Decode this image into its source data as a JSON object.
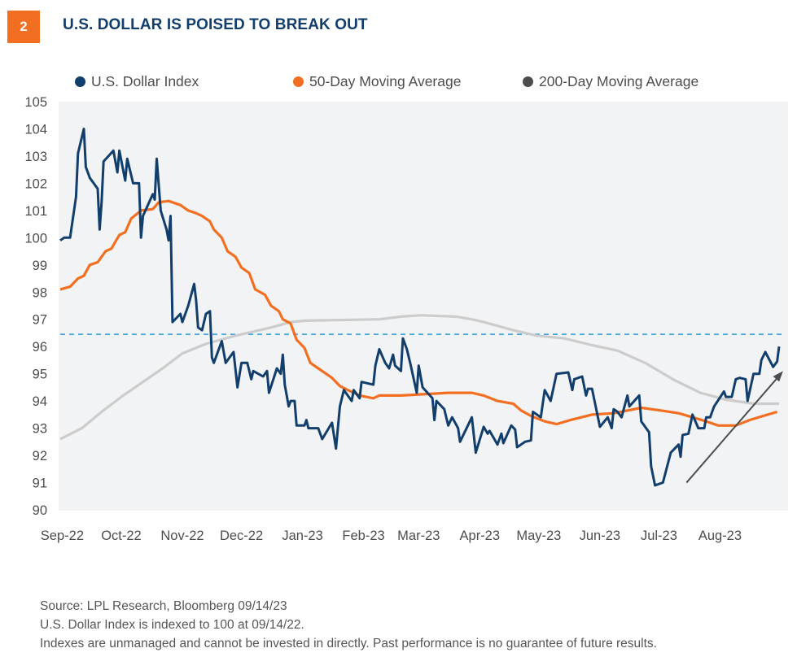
{
  "header": {
    "badge": "2",
    "title": "U.S. DOLLAR IS POISED TO BREAK OUT"
  },
  "footnotes": [
    "Source: LPL Research, Bloomberg  09/14/23",
    "U.S. Dollar Index is indexed to 100 at 09/14/22.",
    "Indexes are unmanaged and cannot be invested in directly. Past performance is no guarantee of future results."
  ],
  "chart_data": {
    "type": "line",
    "title": "U.S. DOLLAR IS POISED TO BREAK OUT",
    "xlabel": "",
    "ylabel": "",
    "ylim": [
      90,
      105
    ],
    "yticks": [
      90,
      91,
      92,
      93,
      94,
      95,
      96,
      97,
      98,
      99,
      100,
      101,
      102,
      103,
      104,
      105
    ],
    "xlim": [
      "2022-09-14",
      "2023-09-14"
    ],
    "xticks": [
      "Sep-22",
      "Oct-22",
      "Nov-22",
      "Dec-22",
      "Jan-23",
      "Feb-23",
      "Mar-23",
      "Apr-23",
      "May-23",
      "Jun-23",
      "Jul-23",
      "Aug-23"
    ],
    "grid": false,
    "legend": "top",
    "reference_line": {
      "y": 96.45,
      "style": "dashed",
      "color": "#2b9bd8"
    },
    "annotation_arrow": {
      "from": [
        "2023-07-29",
        91.0
      ],
      "to": [
        "2023-09-16",
        95.1
      ],
      "color": "#4d4d4d"
    },
    "series": [
      {
        "name": "U.S. Dollar Index",
        "color": "#123e6b",
        "legend_color": "#123e6b",
        "points": [
          [
            "2022-09-14",
            99.9
          ],
          [
            "2022-09-16",
            100.0
          ],
          [
            "2022-09-19",
            100.0
          ],
          [
            "2022-09-22",
            101.5
          ],
          [
            "2022-09-23",
            103.1
          ],
          [
            "2022-09-26",
            104.0
          ],
          [
            "2022-09-27",
            102.6
          ],
          [
            "2022-09-29",
            102.2
          ],
          [
            "2022-10-03",
            101.8
          ],
          [
            "2022-10-04",
            100.3
          ],
          [
            "2022-10-05",
            101.3
          ],
          [
            "2022-10-06",
            102.8
          ],
          [
            "2022-10-11",
            103.2
          ],
          [
            "2022-10-13",
            102.4
          ],
          [
            "2022-10-14",
            103.2
          ],
          [
            "2022-10-17",
            102.1
          ],
          [
            "2022-10-18",
            102.9
          ],
          [
            "2022-10-21",
            102.0
          ],
          [
            "2022-10-24",
            102.0
          ],
          [
            "2022-10-25",
            100.0
          ],
          [
            "2022-10-26",
            100.8
          ],
          [
            "2022-10-31",
            101.6
          ],
          [
            "2022-11-01",
            101.4
          ],
          [
            "2022-11-02",
            102.9
          ],
          [
            "2022-11-04",
            101.0
          ],
          [
            "2022-11-07",
            100.3
          ],
          [
            "2022-11-08",
            99.9
          ],
          [
            "2022-11-09",
            100.8
          ],
          [
            "2022-11-10",
            96.9
          ],
          [
            "2022-11-14",
            97.2
          ],
          [
            "2022-11-15",
            96.9
          ],
          [
            "2022-11-18",
            97.5
          ],
          [
            "2022-11-21",
            98.3
          ],
          [
            "2022-11-22",
            97.7
          ],
          [
            "2022-11-23",
            96.7
          ],
          [
            "2022-11-25",
            96.6
          ],
          [
            "2022-11-27",
            97.2
          ],
          [
            "2022-11-29",
            97.3
          ],
          [
            "2022-11-30",
            95.6
          ],
          [
            "2022-12-01",
            95.4
          ],
          [
            "2022-12-05",
            96.2
          ],
          [
            "2022-12-07",
            95.4
          ],
          [
            "2022-12-11",
            95.8
          ],
          [
            "2022-12-13",
            94.5
          ],
          [
            "2022-12-15",
            95.4
          ],
          [
            "2022-12-18",
            95.4
          ],
          [
            "2022-12-20",
            94.8
          ],
          [
            "2022-12-21",
            95.1
          ],
          [
            "2022-12-26",
            94.9
          ],
          [
            "2022-12-28",
            95.1
          ],
          [
            "2022-12-29",
            94.3
          ],
          [
            "2023-01-02",
            95.2
          ],
          [
            "2023-01-04",
            95.0
          ],
          [
            "2023-01-05",
            95.7
          ],
          [
            "2023-01-06",
            94.6
          ],
          [
            "2023-01-08",
            93.8
          ],
          [
            "2023-01-09",
            94.0
          ],
          [
            "2023-01-11",
            94.0
          ],
          [
            "2023-01-12",
            93.1
          ],
          [
            "2023-01-16",
            93.1
          ],
          [
            "2023-01-17",
            93.3
          ],
          [
            "2023-01-18",
            93.0
          ],
          [
            "2023-01-23",
            93.0
          ],
          [
            "2023-01-25",
            92.6
          ],
          [
            "2023-01-30",
            93.2
          ],
          [
            "2023-02-01",
            92.25
          ],
          [
            "2023-02-03",
            93.8
          ],
          [
            "2023-02-05",
            94.4
          ],
          [
            "2023-02-09",
            94.0
          ],
          [
            "2023-02-10",
            94.4
          ],
          [
            "2023-02-13",
            94.1
          ],
          [
            "2023-02-14",
            94.7
          ],
          [
            "2023-02-20",
            94.6
          ],
          [
            "2023-02-21",
            95.3
          ],
          [
            "2023-02-23",
            95.9
          ],
          [
            "2023-02-26",
            95.4
          ],
          [
            "2023-02-28",
            95.2
          ],
          [
            "2023-03-02",
            95.7
          ],
          [
            "2023-03-03",
            95.3
          ],
          [
            "2023-03-06",
            95.1
          ],
          [
            "2023-03-07",
            96.3
          ],
          [
            "2023-03-09",
            95.9
          ],
          [
            "2023-03-11",
            95.3
          ],
          [
            "2023-03-14",
            94.3
          ],
          [
            "2023-03-15",
            95.3
          ],
          [
            "2023-03-17",
            94.5
          ],
          [
            "2023-03-22",
            94.1
          ],
          [
            "2023-03-23",
            93.3
          ],
          [
            "2023-03-24",
            94.0
          ],
          [
            "2023-03-28",
            93.7
          ],
          [
            "2023-03-30",
            93.1
          ],
          [
            "2023-04-01",
            93.4
          ],
          [
            "2023-04-04",
            93.0
          ],
          [
            "2023-04-05",
            92.5
          ],
          [
            "2023-04-07",
            92.8
          ],
          [
            "2023-04-11",
            93.4
          ],
          [
            "2023-04-13",
            92.1
          ],
          [
            "2023-04-17",
            93.05
          ],
          [
            "2023-04-19",
            92.8
          ],
          [
            "2023-04-20",
            92.9
          ],
          [
            "2023-04-24",
            92.4
          ],
          [
            "2023-04-26",
            92.8
          ],
          [
            "2023-04-27",
            92.45
          ],
          [
            "2023-05-01",
            93.1
          ],
          [
            "2023-05-03",
            92.95
          ],
          [
            "2023-05-04",
            92.3
          ],
          [
            "2023-05-08",
            92.5
          ],
          [
            "2023-05-11",
            92.55
          ],
          [
            "2023-05-12",
            93.6
          ],
          [
            "2023-05-16",
            93.4
          ],
          [
            "2023-05-18",
            94.4
          ],
          [
            "2023-05-21",
            94.0
          ],
          [
            "2023-05-24",
            95.0
          ],
          [
            "2023-05-30",
            95.05
          ],
          [
            "2023-06-01",
            94.4
          ],
          [
            "2023-06-02",
            94.8
          ],
          [
            "2023-06-06",
            94.9
          ],
          [
            "2023-06-08",
            94.2
          ],
          [
            "2023-06-09",
            94.45
          ],
          [
            "2023-06-11",
            94.45
          ],
          [
            "2023-06-15",
            93.05
          ],
          [
            "2023-06-19",
            93.4
          ],
          [
            "2023-06-21",
            93.0
          ],
          [
            "2023-06-22",
            93.7
          ],
          [
            "2023-06-24",
            93.6
          ],
          [
            "2023-06-26",
            93.4
          ],
          [
            "2023-06-29",
            94.2
          ],
          [
            "2023-06-30",
            93.8
          ],
          [
            "2023-07-05",
            94.2
          ],
          [
            "2023-07-06",
            93.25
          ],
          [
            "2023-07-10",
            92.85
          ],
          [
            "2023-07-11",
            91.6
          ],
          [
            "2023-07-13",
            90.9
          ],
          [
            "2023-07-17",
            91.0
          ],
          [
            "2023-07-21",
            92.1
          ],
          [
            "2023-07-25",
            92.4
          ],
          [
            "2023-07-26",
            91.95
          ],
          [
            "2023-07-27",
            92.75
          ],
          [
            "2023-07-30",
            92.8
          ],
          [
            "2023-08-01",
            93.5
          ],
          [
            "2023-08-04",
            93.0
          ],
          [
            "2023-08-07",
            93.0
          ],
          [
            "2023-08-08",
            93.4
          ],
          [
            "2023-08-10",
            93.4
          ],
          [
            "2023-08-12",
            93.8
          ],
          [
            "2023-08-17",
            94.35
          ],
          [
            "2023-08-18",
            94.15
          ],
          [
            "2023-08-21",
            94.15
          ],
          [
            "2023-08-23",
            94.8
          ],
          [
            "2023-08-25",
            94.85
          ],
          [
            "2023-08-28",
            94.8
          ],
          [
            "2023-08-29",
            94.0
          ],
          [
            "2023-09-01",
            95.0
          ],
          [
            "2023-09-04",
            95.0
          ],
          [
            "2023-09-05",
            95.5
          ],
          [
            "2023-09-07",
            95.8
          ],
          [
            "2023-09-11",
            95.25
          ],
          [
            "2023-09-13",
            95.45
          ],
          [
            "2023-09-14",
            96.0
          ]
        ]
      },
      {
        "name": "50-Day Moving Average",
        "color": "#f26f21",
        "legend_color": "#f26f21",
        "points": [
          [
            "2022-09-14",
            98.1
          ],
          [
            "2022-09-19",
            98.2
          ],
          [
            "2022-09-23",
            98.5
          ],
          [
            "2022-09-26",
            98.6
          ],
          [
            "2022-09-29",
            99.0
          ],
          [
            "2022-10-03",
            99.1
          ],
          [
            "2022-10-07",
            99.5
          ],
          [
            "2022-10-10",
            99.6
          ],
          [
            "2022-10-14",
            100.1
          ],
          [
            "2022-10-17",
            100.2
          ],
          [
            "2022-10-20",
            100.7
          ],
          [
            "2022-10-25",
            101.0
          ],
          [
            "2022-10-31",
            101.05
          ],
          [
            "2022-11-03",
            101.3
          ],
          [
            "2022-11-08",
            101.35
          ],
          [
            "2022-11-14",
            101.2
          ],
          [
            "2022-11-18",
            101.0
          ],
          [
            "2022-11-22",
            100.9
          ],
          [
            "2022-11-25",
            100.8
          ],
          [
            "2022-11-29",
            100.6
          ],
          [
            "2022-12-01",
            100.3
          ],
          [
            "2022-12-05",
            100.0
          ],
          [
            "2022-12-08",
            99.5
          ],
          [
            "2022-12-12",
            99.3
          ],
          [
            "2022-12-15",
            98.9
          ],
          [
            "2022-12-19",
            98.7
          ],
          [
            "2022-12-22",
            98.1
          ],
          [
            "2022-12-27",
            97.9
          ],
          [
            "2022-12-30",
            97.5
          ],
          [
            "2023-01-03",
            97.3
          ],
          [
            "2023-01-05",
            97.0
          ],
          [
            "2023-01-09",
            96.85
          ],
          [
            "2023-01-12",
            96.25
          ],
          [
            "2023-01-16",
            95.95
          ],
          [
            "2023-01-19",
            95.4
          ],
          [
            "2023-01-23",
            95.2
          ],
          [
            "2023-01-27",
            95.0
          ],
          [
            "2023-01-30",
            94.85
          ],
          [
            "2023-02-03",
            94.55
          ],
          [
            "2023-02-07",
            94.4
          ],
          [
            "2023-02-13",
            94.2
          ],
          [
            "2023-02-20",
            94.1
          ],
          [
            "2023-02-23",
            94.2
          ],
          [
            "2023-03-06",
            94.2
          ],
          [
            "2023-03-30",
            94.3
          ],
          [
            "2023-04-11",
            94.3
          ],
          [
            "2023-04-17",
            94.2
          ],
          [
            "2023-04-24",
            94.0
          ],
          [
            "2023-05-02",
            93.9
          ],
          [
            "2023-05-06",
            93.65
          ],
          [
            "2023-05-11",
            93.45
          ],
          [
            "2023-05-18",
            93.25
          ],
          [
            "2023-05-24",
            93.15
          ],
          [
            "2023-05-31",
            93.3
          ],
          [
            "2023-06-11",
            93.5
          ],
          [
            "2023-06-22",
            93.55
          ],
          [
            "2023-07-06",
            93.75
          ],
          [
            "2023-07-16",
            93.65
          ],
          [
            "2023-07-25",
            93.55
          ],
          [
            "2023-08-01",
            93.4
          ],
          [
            "2023-08-08",
            93.25
          ],
          [
            "2023-08-14",
            93.1
          ],
          [
            "2023-08-23",
            93.1
          ],
          [
            "2023-08-30",
            93.3
          ],
          [
            "2023-09-06",
            93.45
          ],
          [
            "2023-09-13",
            93.6
          ]
        ]
      },
      {
        "name": "200-Day Moving Average",
        "color": "#cccccc",
        "legend_color": "#4d4d4d",
        "points": [
          [
            "2022-09-14",
            92.6
          ],
          [
            "2022-09-25",
            93.0
          ],
          [
            "2022-10-05",
            93.6
          ],
          [
            "2022-10-15",
            94.15
          ],
          [
            "2022-10-26",
            94.7
          ],
          [
            "2022-11-05",
            95.2
          ],
          [
            "2022-11-15",
            95.75
          ],
          [
            "2022-11-27",
            96.1
          ],
          [
            "2022-12-12",
            96.4
          ],
          [
            "2022-12-30",
            96.7
          ],
          [
            "2023-01-09",
            96.9
          ],
          [
            "2023-01-16",
            96.95
          ],
          [
            "2023-02-23",
            97.0
          ],
          [
            "2023-03-06",
            97.1
          ],
          [
            "2023-03-16",
            97.15
          ],
          [
            "2023-04-03",
            97.1
          ],
          [
            "2023-04-11",
            97.0
          ],
          [
            "2023-04-17",
            96.9
          ],
          [
            "2023-05-02",
            96.6
          ],
          [
            "2023-05-14",
            96.4
          ],
          [
            "2023-05-28",
            96.3
          ],
          [
            "2023-06-11",
            96.05
          ],
          [
            "2023-06-24",
            95.85
          ],
          [
            "2023-07-08",
            95.4
          ],
          [
            "2023-07-22",
            94.8
          ],
          [
            "2023-08-05",
            94.3
          ],
          [
            "2023-08-18",
            94.05
          ],
          [
            "2023-09-01",
            93.9
          ],
          [
            "2023-09-14",
            93.9
          ]
        ]
      }
    ]
  }
}
